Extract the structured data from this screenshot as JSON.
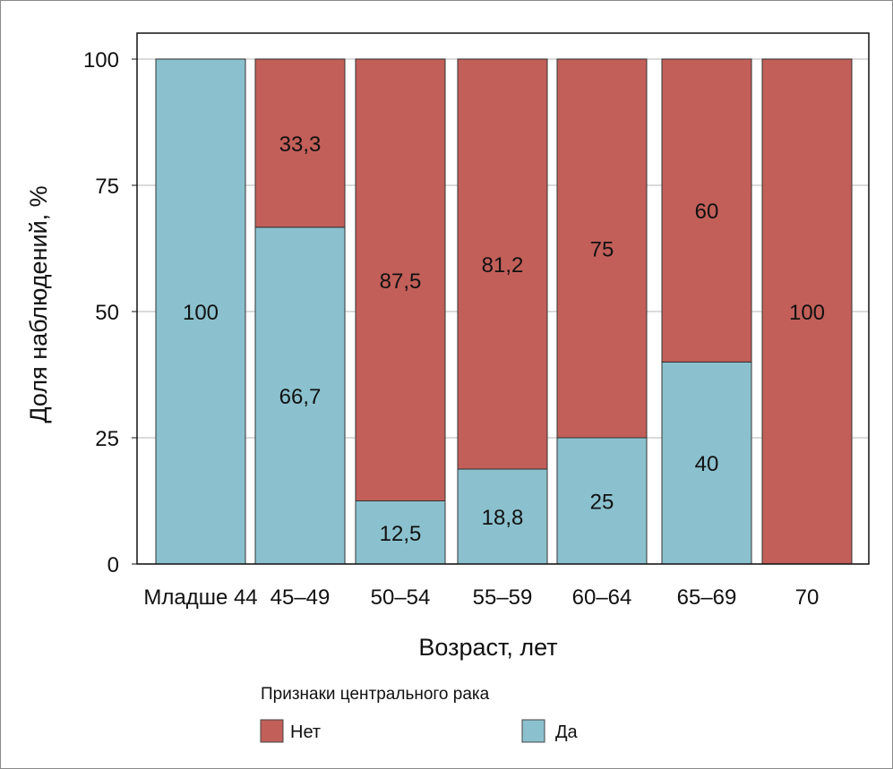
{
  "chart_data": {
    "type": "bar",
    "stacked": true,
    "title": "",
    "xlabel": "Возраст, лет",
    "ylabel": "Доля наблюдений, %",
    "ylim": [
      0,
      100
    ],
    "yticks": [
      0,
      25,
      50,
      75,
      100
    ],
    "grid": true,
    "categories": [
      "Младше 44",
      "45–49",
      "50–54",
      "55–59",
      "60–64",
      "65–69",
      "70"
    ],
    "series": [
      {
        "name": "Да",
        "color": "#8bc1ce",
        "values": [
          100,
          66.7,
          12.5,
          18.8,
          25,
          40,
          0
        ],
        "labels": [
          "100",
          "66,7",
          "12,5",
          "18,8",
          "25",
          "40",
          ""
        ]
      },
      {
        "name": "Нет",
        "color": "#c25f59",
        "values": [
          0,
          33.3,
          87.5,
          81.2,
          75,
          60,
          100
        ],
        "labels": [
          "",
          "33,3",
          "87,5",
          "81,2",
          "75",
          "60",
          "100"
        ]
      }
    ],
    "legend": {
      "title": "Признаки центрального рака",
      "placement": "bottom",
      "items": [
        "Нет",
        "Да"
      ]
    }
  }
}
